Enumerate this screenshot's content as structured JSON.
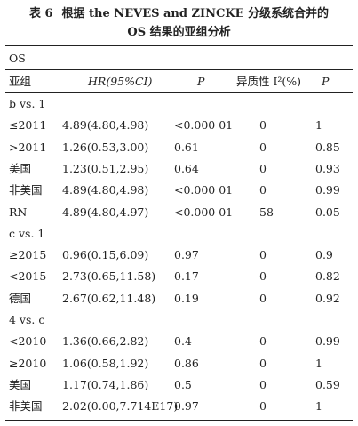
{
  "table": {
    "number": "表 6",
    "title_line1": "根据 the NEVES and ZINCKE 分级系统合并的",
    "title_line2": "OS 结果的亚组分析",
    "group_label": "OS",
    "headers": {
      "subgroup": "亚组",
      "hr": "HR(95%CI)",
      "p": "P",
      "heterogeneity": "异质性 I²(%)",
      "p2": "P"
    },
    "sections": [
      {
        "label": "b vs. 1",
        "rows": [
          {
            "subgroup": "≤2011",
            "hr": "4.89(4.80,4.98)",
            "p": "<0.000 01",
            "het": "0",
            "p2": "1"
          },
          {
            "subgroup": ">2011",
            "hr": "1.26(0.53,3.00)",
            "p": "0.61",
            "het": "0",
            "p2": "0.85"
          },
          {
            "subgroup": "美国",
            "hr": "1.23(0.51,2.95)",
            "p": "0.64",
            "het": "0",
            "p2": "0.93"
          },
          {
            "subgroup": "非美国",
            "hr": "4.89(4.80,4.98)",
            "p": "<0.000 01",
            "het": "0",
            "p2": "0.99"
          },
          {
            "subgroup": "RN",
            "hr": "4.89(4.80,4.97)",
            "p": "<0.000 01",
            "het": "58",
            "p2": "0.05"
          }
        ]
      },
      {
        "label": "c vs. 1",
        "rows": [
          {
            "subgroup": "≥2015",
            "hr": "0.96(0.15,6.09)",
            "p": "0.97",
            "het": "0",
            "p2": "0.9"
          },
          {
            "subgroup": "<2015",
            "hr": "2.73(0.65,11.58)",
            "p": "0.17",
            "het": "0",
            "p2": "0.82"
          },
          {
            "subgroup": "德国",
            "hr": "2.67(0.62,11.48)",
            "p": "0.19",
            "het": "0",
            "p2": "0.92"
          }
        ]
      },
      {
        "label": "4 vs. c",
        "rows": [
          {
            "subgroup": "<2010",
            "hr": "1.36(0.66,2.82)",
            "p": "0.4",
            "het": "0",
            "p2": "0.99"
          },
          {
            "subgroup": "≥2010",
            "hr": "1.06(0.58,1.92)",
            "p": "0.86",
            "het": "0",
            "p2": "1"
          },
          {
            "subgroup": "美国",
            "hr": "1.17(0.74,1.86)",
            "p": "0.5",
            "het": "0",
            "p2": "0.59"
          },
          {
            "subgroup": "非美国",
            "hr": "2.02(0.00,7.714E17)",
            "p": "0.97",
            "het": "0",
            "p2": "1"
          }
        ]
      }
    ]
  }
}
